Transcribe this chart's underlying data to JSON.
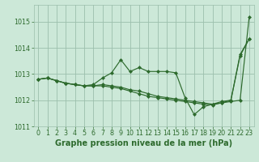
{
  "title": "Graphe pression niveau de la mer (hPa)",
  "hours": [
    0,
    1,
    2,
    3,
    4,
    5,
    6,
    7,
    8,
    9,
    10,
    11,
    12,
    13,
    14,
    15,
    16,
    17,
    18,
    19,
    20,
    21,
    22,
    23
  ],
  "line1": [
    1012.8,
    1012.85,
    1012.75,
    1012.65,
    1012.6,
    1012.55,
    1012.6,
    1012.85,
    1013.05,
    1013.55,
    1013.1,
    1013.25,
    1013.1,
    1013.1,
    1013.1,
    1013.05,
    1012.1,
    1011.45,
    1011.75,
    1011.85,
    1011.95,
    1012.0,
    1013.75,
    1014.35
  ],
  "line2": [
    1012.8,
    1012.85,
    1012.75,
    1012.65,
    1012.6,
    1012.55,
    1012.55,
    1012.6,
    1012.55,
    1012.5,
    1012.4,
    1012.35,
    1012.25,
    1012.15,
    1012.1,
    1012.05,
    1012.0,
    1011.95,
    1011.9,
    1011.85,
    1011.9,
    1011.95,
    1012.0,
    1015.2
  ],
  "line3": [
    1012.8,
    1012.85,
    1012.75,
    1012.65,
    1012.6,
    1012.55,
    1012.55,
    1012.55,
    1012.5,
    1012.45,
    1012.35,
    1012.25,
    1012.15,
    1012.1,
    1012.05,
    1012.0,
    1011.95,
    1011.9,
    1011.85,
    1011.82,
    1011.9,
    1012.0,
    1013.7,
    1014.35
  ],
  "ylim": [
    1011.0,
    1015.65
  ],
  "yticks": [
    1011,
    1012,
    1013,
    1014,
    1015
  ],
  "xticks": [
    0,
    1,
    2,
    3,
    4,
    5,
    6,
    7,
    8,
    9,
    10,
    11,
    12,
    13,
    14,
    15,
    16,
    17,
    18,
    19,
    20,
    21,
    22,
    23
  ],
  "line_color": "#2d6a2d",
  "bg_color": "#cce8d8",
  "grid_color": "#9cbfac",
  "tick_fontsize": 5.8,
  "label_fontsize": 7.0
}
